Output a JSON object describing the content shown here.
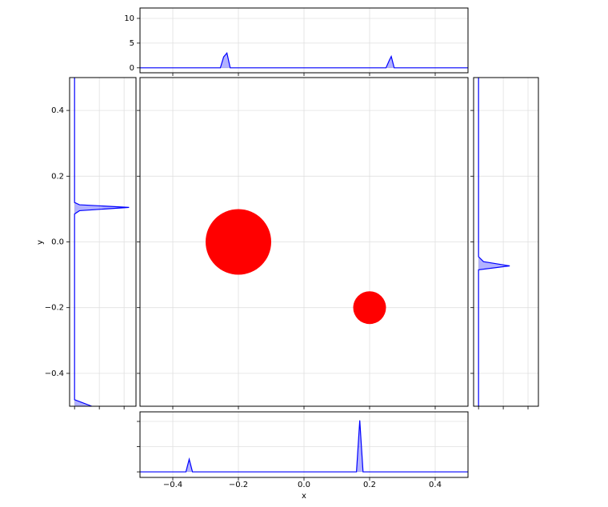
{
  "chart_data": [
    {
      "type": "scatter",
      "x_label": "x",
      "y_label": "y",
      "x": [
        -0.2,
        0.2
      ],
      "y": [
        0,
        -0.2
      ],
      "sizes": [
        0.1,
        0.05
      ],
      "color": "red",
      "xlim": [
        -0.5,
        0.5
      ],
      "ylim": [
        -0.5,
        0.5
      ],
      "xticks": [
        {
          "value": -0.4,
          "label": "−0.4"
        },
        {
          "value": -0.2,
          "label": "−0.2"
        },
        {
          "value": 0,
          "label": "0.0"
        },
        0.2,
        0.4
      ],
      "yticks": [
        {
          "value": -0.4,
          "label": "−0.4"
        },
        {
          "value": -0.2,
          "label": "−0.2"
        },
        {
          "value": 0,
          "label": "0.0"
        },
        0.2,
        0.4
      ],
      "grid": true
    },
    {
      "type": "density",
      "orientation": "vertical",
      "x": [
        -0.5,
        -0.255,
        -0.245,
        -0.235,
        -0.225,
        0.25,
        0.26,
        0.266,
        0.275,
        0.5
      ],
      "values": [
        0,
        0,
        2.2,
        3,
        0,
        0,
        1.5,
        2.3,
        0,
        0
      ],
      "color": "blue",
      "ylim": [
        -1,
        12.1
      ],
      "yticks": [
        0,
        5,
        10
      ],
      "grid": true
    },
    {
      "type": "density",
      "orientation": "vertical",
      "x": [
        -0.5,
        -0.36,
        -0.35,
        -0.34,
        0.16,
        0.17,
        0.18,
        0.5
      ],
      "values": [
        0,
        0,
        2.5,
        0,
        0,
        10.2,
        0,
        0
      ],
      "color": "blue",
      "ylim": [
        -1.1,
        11.9
      ],
      "yticks": [
        0,
        5,
        10
      ],
      "grid": true
    },
    {
      "type": "density",
      "orientation": "horizontal",
      "x": [
        0.5,
        0.12,
        0.113,
        0.105,
        0.095,
        0.085,
        -0.48,
        -0.5
      ],
      "values": [
        0,
        0,
        1,
        11,
        1,
        0,
        0,
        3.5
      ],
      "color": "blue",
      "ylim": [
        -1,
        12.4
      ],
      "yticks": [
        0,
        5,
        10
      ],
      "grid": true
    },
    {
      "type": "density",
      "orientation": "horizontal",
      "x": [
        0.5,
        -0.045,
        -0.06,
        -0.073,
        -0.085,
        -0.5
      ],
      "values": [
        0,
        0,
        1,
        6.3,
        0,
        0
      ],
      "color": "blue",
      "ylim": [
        -1,
        12.1
      ],
      "yticks": [
        0,
        5,
        10
      ],
      "grid": true
    }
  ]
}
